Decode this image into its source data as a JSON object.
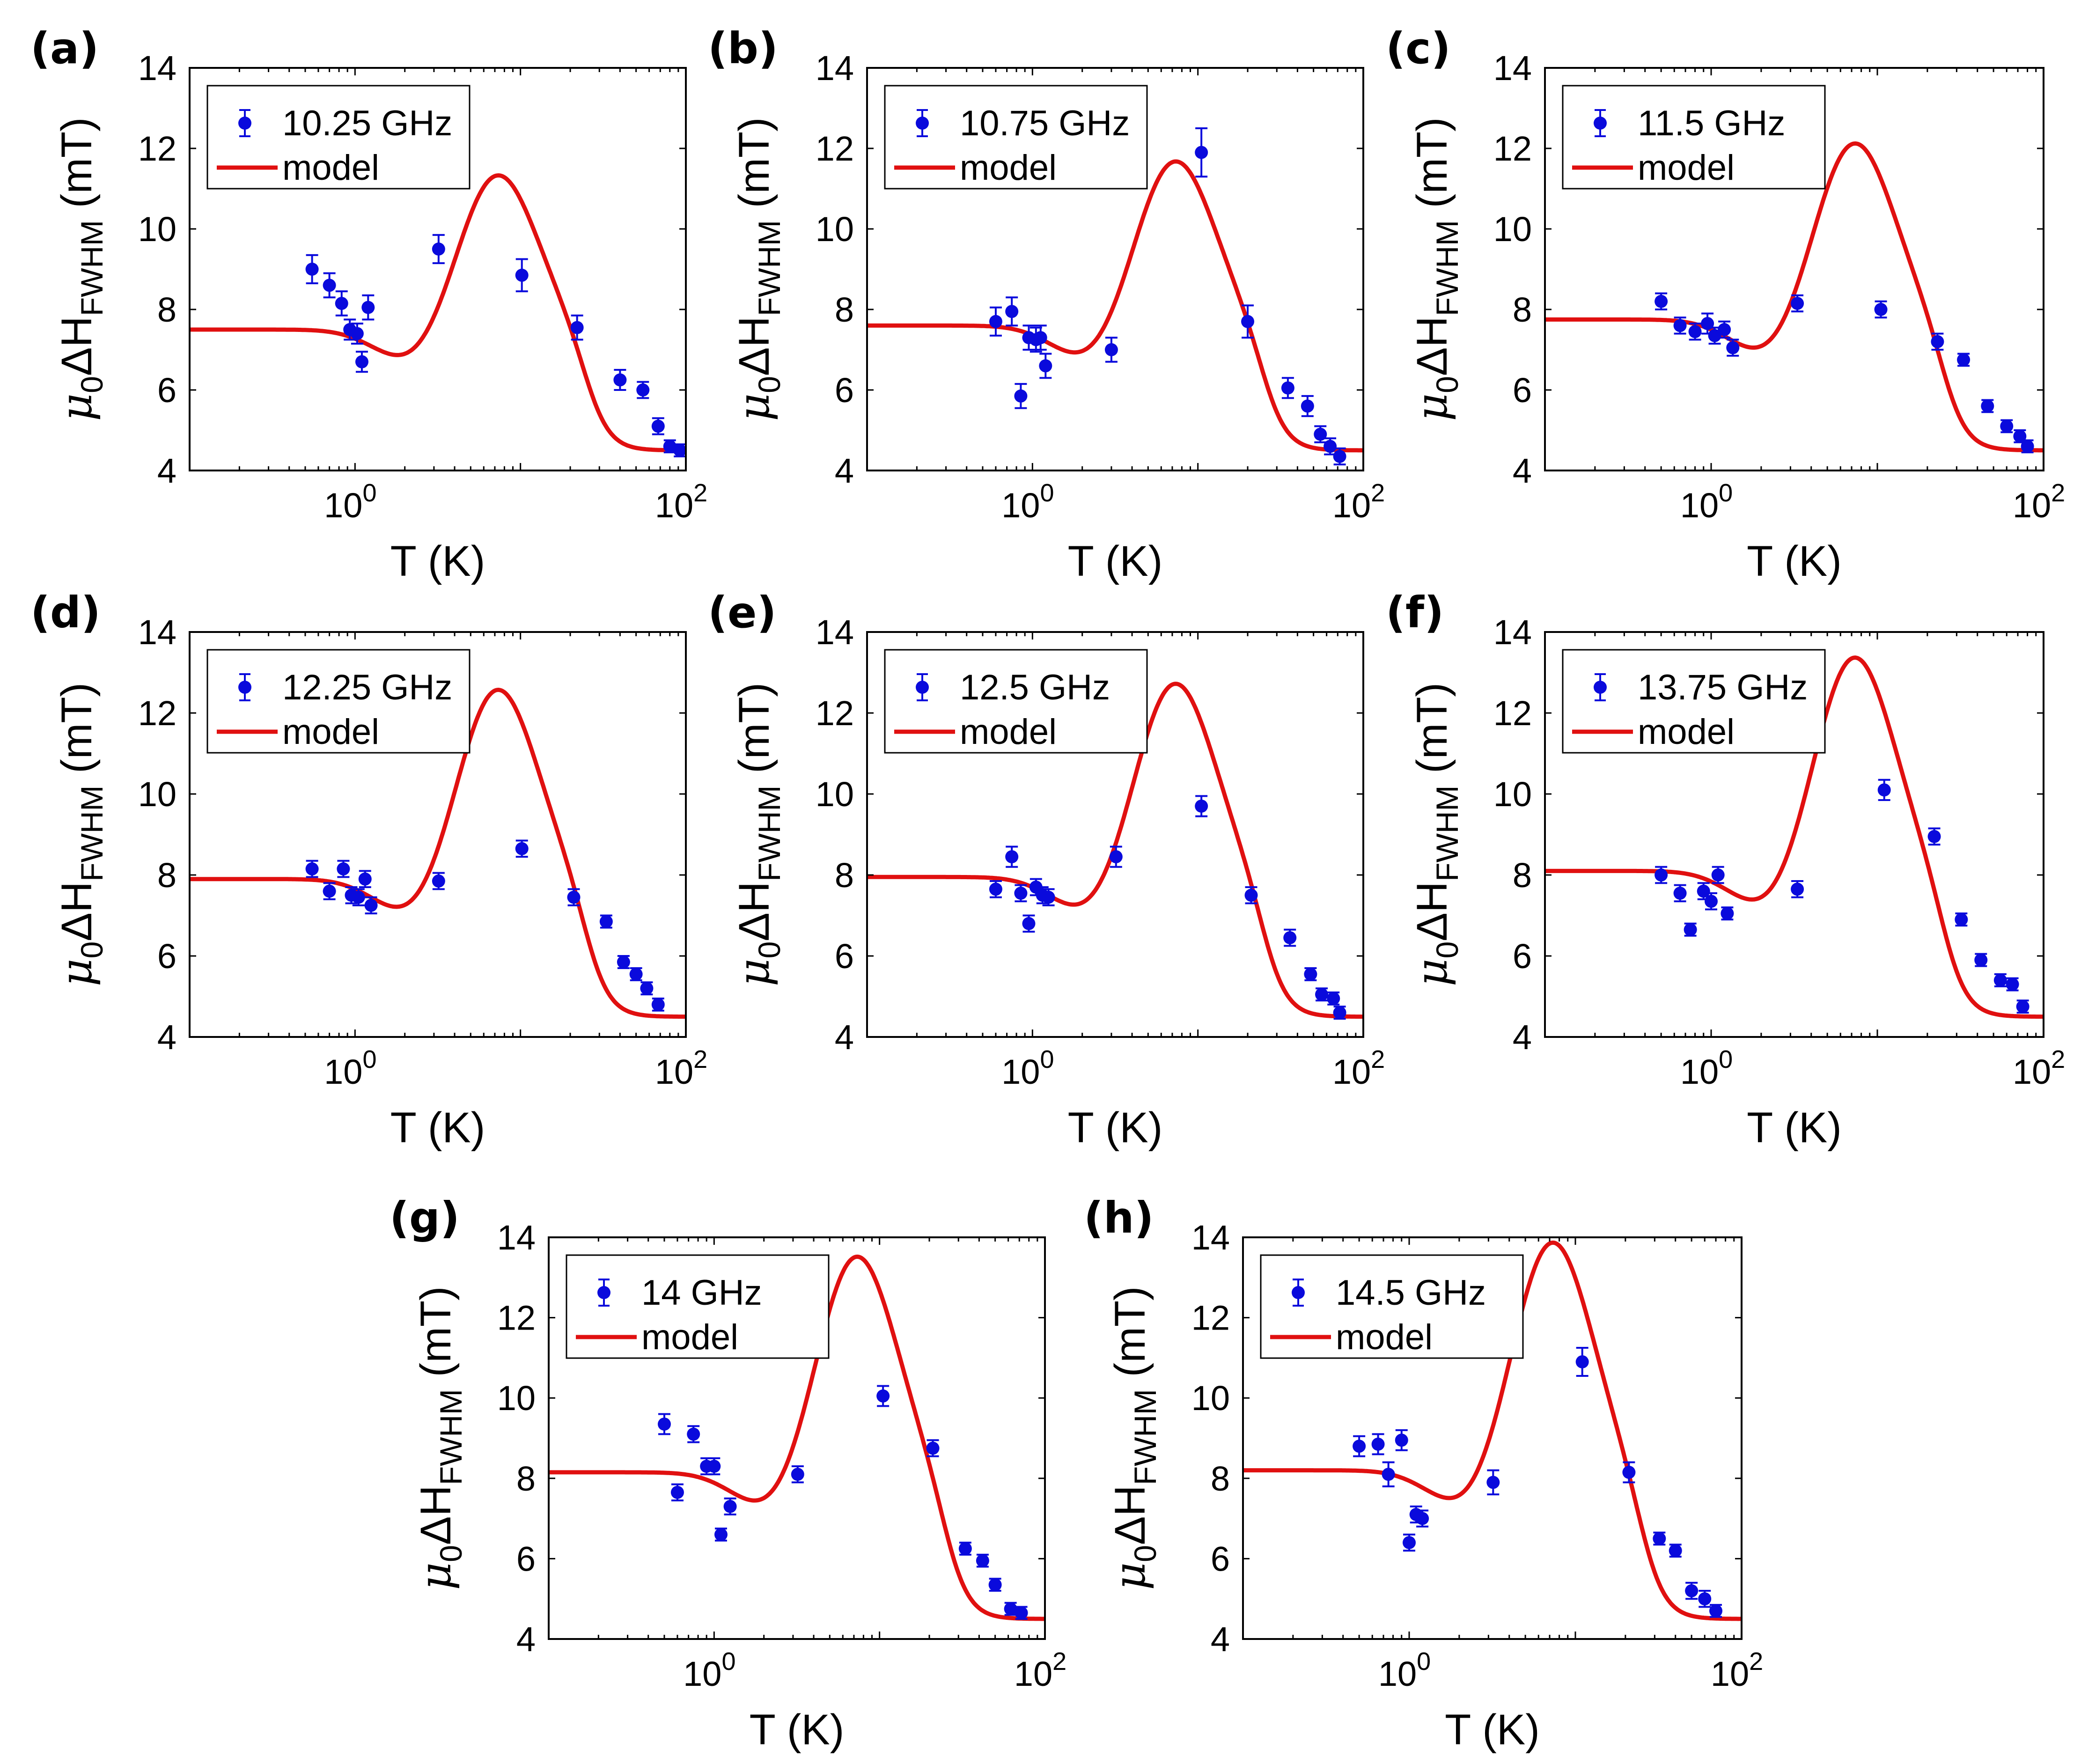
{
  "figure": {
    "x_tick_labels": [
      {
        "base": "10",
        "exp": "0"
      },
      {
        "base": "10",
        "exp": "2"
      }
    ],
    "x_label": "T (K)",
    "y_label": {
      "mu": "μ",
      "mu_sub": "0",
      "delta_h": "ΔH",
      "h_sub": "FWHM",
      "unit": "(mT)"
    },
    "legend_model_label": "model",
    "colors": {
      "points": "#0a0adc",
      "model": "#e01010",
      "axes": "#000000"
    }
  },
  "chart_data": [
    {
      "panel": "(a)",
      "type": "scatter+line",
      "legend_data": "10.25 GHz",
      "xscale": "log",
      "xlim": [
        0.1,
        100
      ],
      "ylim": [
        4,
        14
      ],
      "yticks": [
        4,
        6,
        8,
        10,
        12,
        14
      ],
      "x": [
        0.55,
        0.7,
        0.83,
        0.93,
        1.03,
        1.1,
        1.2,
        3.2,
        10.2,
        22,
        40,
        55,
        68,
        80,
        92
      ],
      "y": [
        9.0,
        8.6,
        8.15,
        7.5,
        7.4,
        6.7,
        8.05,
        9.5,
        8.85,
        7.55,
        6.25,
        6.0,
        5.1,
        4.6,
        4.5
      ],
      "err": [
        0.35,
        0.3,
        0.3,
        0.25,
        0.25,
        0.25,
        0.3,
        0.35,
        0.4,
        0.3,
        0.25,
        0.2,
        0.2,
        0.15,
        0.15
      ],
      "model": {
        "base": 7.5,
        "dip_depth": 0.9,
        "dip_T": 2.3,
        "dip_width": 0.22,
        "peak_T": 7.2,
        "peak_height": 3.9,
        "peak_width": 0.24,
        "tail_level": 4.5,
        "tail_T": 25,
        "tail_width": 0.3
      }
    },
    {
      "panel": "(b)",
      "type": "scatter+line",
      "legend_data": "10.75 GHz",
      "xscale": "log",
      "xlim": [
        0.1,
        100
      ],
      "ylim": [
        4,
        14
      ],
      "yticks": [
        4,
        6,
        8,
        10,
        12,
        14
      ],
      "x": [
        0.6,
        0.75,
        0.85,
        0.95,
        1.05,
        1.12,
        1.2,
        3.0,
        10.5,
        20,
        35,
        46,
        55,
        63,
        72
      ],
      "y": [
        7.7,
        7.95,
        5.85,
        7.3,
        7.25,
        7.3,
        6.6,
        7.0,
        11.9,
        7.7,
        6.05,
        5.6,
        4.9,
        4.6,
        4.35
      ],
      "err": [
        0.35,
        0.35,
        0.3,
        0.3,
        0.3,
        0.3,
        0.3,
        0.3,
        0.6,
        0.4,
        0.25,
        0.25,
        0.2,
        0.2,
        0.2
      ],
      "model": {
        "base": 7.6,
        "dip_depth": 0.95,
        "dip_T": 2.3,
        "dip_width": 0.22,
        "peak_T": 7.2,
        "peak_height": 4.15,
        "peak_width": 0.24,
        "tail_level": 4.5,
        "tail_T": 25,
        "tail_width": 0.3
      }
    },
    {
      "panel": "(c)",
      "type": "scatter+line",
      "legend_data": "11.5 GHz",
      "xscale": "log",
      "xlim": [
        0.1,
        100
      ],
      "ylim": [
        4,
        14
      ],
      "yticks": [
        4,
        6,
        8,
        10,
        12,
        14
      ],
      "x": [
        0.5,
        0.65,
        0.8,
        0.95,
        1.05,
        1.2,
        1.35,
        3.3,
        10.5,
        23,
        33,
        46,
        60,
        72,
        80
      ],
      "y": [
        8.2,
        7.6,
        7.45,
        7.65,
        7.35,
        7.5,
        7.05,
        8.15,
        8.0,
        7.2,
        6.75,
        5.6,
        5.1,
        4.85,
        4.6
      ],
      "err": [
        0.2,
        0.2,
        0.2,
        0.25,
        0.2,
        0.2,
        0.2,
        0.2,
        0.2,
        0.2,
        0.15,
        0.15,
        0.15,
        0.15,
        0.15
      ],
      "model": {
        "base": 7.75,
        "dip_depth": 1.0,
        "dip_T": 2.3,
        "dip_width": 0.22,
        "peak_T": 7.2,
        "peak_height": 4.45,
        "peak_width": 0.24,
        "tail_level": 4.5,
        "tail_T": 25,
        "tail_width": 0.3
      }
    },
    {
      "panel": "(d)",
      "type": "scatter+line",
      "legend_data": "12.25 GHz",
      "xscale": "log",
      "xlim": [
        0.1,
        100
      ],
      "ylim": [
        4,
        14
      ],
      "yticks": [
        4,
        6,
        8,
        10,
        12,
        14
      ],
      "x": [
        0.55,
        0.7,
        0.85,
        0.95,
        1.05,
        1.15,
        1.25,
        3.2,
        10.2,
        21,
        33,
        42,
        50,
        58,
        68
      ],
      "y": [
        8.15,
        7.6,
        8.15,
        7.5,
        7.45,
        7.9,
        7.25,
        7.85,
        8.65,
        7.45,
        6.85,
        5.85,
        5.55,
        5.2,
        4.8
      ],
      "err": [
        0.2,
        0.2,
        0.2,
        0.2,
        0.2,
        0.2,
        0.2,
        0.2,
        0.2,
        0.2,
        0.15,
        0.15,
        0.15,
        0.15,
        0.15
      ],
      "model": {
        "base": 7.9,
        "dip_depth": 1.0,
        "dip_T": 2.3,
        "dip_width": 0.22,
        "peak_T": 7.2,
        "peak_height": 4.75,
        "peak_width": 0.24,
        "tail_level": 4.5,
        "tail_T": 25,
        "tail_width": 0.3
      }
    },
    {
      "panel": "(e)",
      "type": "scatter+line",
      "legend_data": "12.5 GHz",
      "xscale": "log",
      "xlim": [
        0.1,
        100
      ],
      "ylim": [
        4,
        14
      ],
      "yticks": [
        4,
        6,
        8,
        10,
        12,
        14
      ],
      "x": [
        0.6,
        0.75,
        0.85,
        0.95,
        1.05,
        1.15,
        1.25,
        3.2,
        10.5,
        21,
        36,
        48,
        56,
        66,
        72
      ],
      "y": [
        7.65,
        8.45,
        7.55,
        6.8,
        7.7,
        7.5,
        7.45,
        8.45,
        9.7,
        7.5,
        6.45,
        5.55,
        5.05,
        4.95,
        4.6
      ],
      "err": [
        0.2,
        0.25,
        0.2,
        0.2,
        0.2,
        0.2,
        0.2,
        0.25,
        0.25,
        0.2,
        0.2,
        0.15,
        0.15,
        0.15,
        0.15
      ],
      "model": {
        "base": 7.95,
        "dip_depth": 1.0,
        "dip_T": 2.3,
        "dip_width": 0.22,
        "peak_T": 7.2,
        "peak_height": 4.85,
        "peak_width": 0.24,
        "tail_level": 4.5,
        "tail_T": 25,
        "tail_width": 0.3
      }
    },
    {
      "panel": "(f)",
      "type": "scatter+line",
      "legend_data": "13.75 GHz",
      "xscale": "log",
      "xlim": [
        0.1,
        100
      ],
      "ylim": [
        4,
        14
      ],
      "yticks": [
        4,
        6,
        8,
        10,
        12,
        14
      ],
      "x": [
        0.5,
        0.65,
        0.75,
        0.9,
        1.0,
        1.1,
        1.25,
        3.3,
        11.0,
        22,
        32,
        42,
        55,
        65,
        75
      ],
      "y": [
        8.0,
        7.55,
        6.65,
        7.6,
        7.35,
        8.0,
        7.05,
        7.65,
        10.1,
        8.95,
        6.9,
        5.9,
        5.4,
        5.3,
        4.75
      ],
      "err": [
        0.2,
        0.2,
        0.15,
        0.2,
        0.2,
        0.2,
        0.15,
        0.2,
        0.25,
        0.2,
        0.15,
        0.15,
        0.15,
        0.15,
        0.15
      ],
      "model": {
        "base": 8.1,
        "dip_depth": 1.05,
        "dip_T": 2.3,
        "dip_width": 0.22,
        "peak_T": 7.2,
        "peak_height": 5.35,
        "peak_width": 0.24,
        "tail_level": 4.5,
        "tail_T": 25,
        "tail_width": 0.3
      }
    },
    {
      "panel": "(g)",
      "type": "scatter+line",
      "legend_data": "14 GHz",
      "xscale": "log",
      "xlim": [
        0.1,
        100
      ],
      "ylim": [
        4,
        14
      ],
      "yticks": [
        4,
        6,
        8,
        10,
        12,
        14
      ],
      "x": [
        0.5,
        0.6,
        0.75,
        0.9,
        1.0,
        1.1,
        1.25,
        3.2,
        10.5,
        21,
        33,
        42,
        50,
        62,
        72
      ],
      "y": [
        9.35,
        7.65,
        9.1,
        8.3,
        8.3,
        6.6,
        7.3,
        8.1,
        10.05,
        8.75,
        6.25,
        5.95,
        5.35,
        4.75,
        4.65
      ],
      "err": [
        0.25,
        0.2,
        0.2,
        0.2,
        0.2,
        0.15,
        0.2,
        0.2,
        0.25,
        0.2,
        0.15,
        0.15,
        0.15,
        0.15,
        0.15
      ],
      "model": {
        "base": 8.15,
        "dip_depth": 1.05,
        "dip_T": 2.3,
        "dip_width": 0.22,
        "peak_T": 7.2,
        "peak_height": 5.45,
        "peak_width": 0.24,
        "tail_level": 4.5,
        "tail_T": 25,
        "tail_width": 0.3
      }
    },
    {
      "panel": "(h)",
      "type": "scatter+line",
      "legend_data": "14.5 GHz",
      "xscale": "log",
      "xlim": [
        0.1,
        100
      ],
      "ylim": [
        4,
        14
      ],
      "yticks": [
        4,
        6,
        8,
        10,
        12,
        14
      ],
      "x": [
        0.5,
        0.65,
        0.75,
        0.9,
        1.0,
        1.1,
        1.2,
        3.2,
        11.0,
        21,
        32,
        40,
        50,
        60,
        70
      ],
      "y": [
        8.8,
        8.85,
        8.1,
        8.95,
        6.4,
        7.1,
        7.0,
        7.9,
        10.9,
        8.15,
        6.5,
        6.2,
        5.2,
        5.0,
        4.7
      ],
      "err": [
        0.25,
        0.25,
        0.3,
        0.25,
        0.2,
        0.2,
        0.2,
        0.3,
        0.35,
        0.25,
        0.15,
        0.15,
        0.2,
        0.2,
        0.15
      ],
      "model": {
        "base": 8.2,
        "dip_depth": 1.05,
        "dip_T": 2.3,
        "dip_width": 0.22,
        "peak_T": 7.2,
        "peak_height": 5.75,
        "peak_width": 0.24,
        "tail_level": 4.5,
        "tail_T": 25,
        "tail_width": 0.3
      }
    }
  ]
}
